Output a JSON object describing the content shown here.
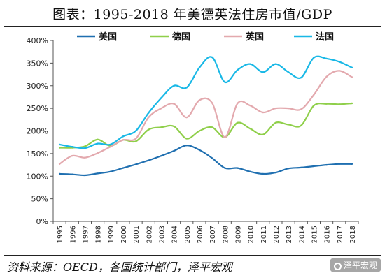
{
  "title": "图表：1995-2018 年美德英法住房市值/GDP",
  "source": "资料来源：OECD，各国统计部门，泽平宏观",
  "watermark": "泽平宏观",
  "chart_data": {
    "type": "line",
    "x": [
      "1995",
      "1996",
      "1997",
      "1998",
      "1999",
      "2000",
      "2001",
      "2002",
      "2003",
      "2004",
      "2005",
      "2006",
      "2007",
      "2008",
      "2009",
      "2010",
      "2011",
      "2012",
      "2013",
      "2014",
      "2015",
      "2016",
      "2017",
      "2018"
    ],
    "ylim": [
      0,
      400
    ],
    "yticks": [
      0,
      50,
      100,
      150,
      200,
      250,
      300,
      350,
      400
    ],
    "ytick_labels": [
      "0%",
      "50%",
      "100%",
      "150%",
      "200%",
      "250%",
      "300%",
      "350%",
      "400%"
    ],
    "grid": false,
    "legend_position": "top",
    "series": [
      {
        "name": "美国",
        "color": "#1f6fb0",
        "values": [
          105,
          104,
          102,
          106,
          110,
          118,
          126,
          135,
          145,
          156,
          168,
          158,
          140,
          118,
          118,
          110,
          105,
          108,
          117,
          119,
          122,
          125,
          127,
          127
        ]
      },
      {
        "name": "德国",
        "color": "#8fcf4a",
        "values": [
          163,
          163,
          166,
          181,
          167,
          180,
          177,
          203,
          208,
          210,
          183,
          200,
          208,
          186,
          218,
          205,
          192,
          218,
          214,
          212,
          256,
          260,
          259,
          261
        ]
      },
      {
        "name": "英国",
        "color": "#e3a9ae",
        "values": [
          127,
          145,
          141,
          151,
          165,
          180,
          183,
          230,
          250,
          260,
          230,
          268,
          262,
          186,
          261,
          256,
          241,
          250,
          250,
          248,
          280,
          320,
          333,
          319
        ]
      },
      {
        "name": "法国",
        "color": "#19b8e6",
        "values": [
          170,
          165,
          162,
          172,
          170,
          188,
          200,
          240,
          273,
          300,
          296,
          340,
          363,
          308,
          335,
          348,
          330,
          348,
          330,
          318,
          362,
          360,
          353,
          340
        ]
      }
    ]
  }
}
